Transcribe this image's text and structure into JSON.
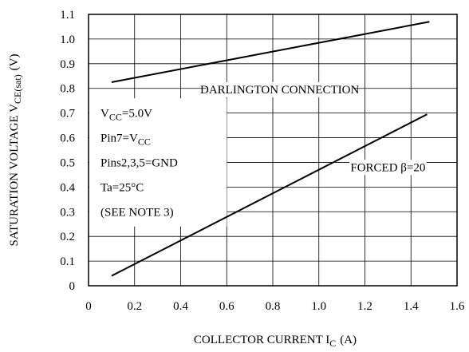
{
  "chart_data": {
    "type": "line",
    "xlabel": {
      "main": "COLLECTOR CURRENT I",
      "sub": "C",
      "unit": "(A)"
    },
    "ylabel": {
      "main": "SATURATION VOLTAGE V",
      "sub": "CE(sat)",
      "unit": "(V)"
    },
    "xlim": [
      0,
      1.6
    ],
    "ylim": [
      0,
      1.1
    ],
    "x_ticks": [
      "0",
      "0.2",
      "0.4",
      "0.6",
      "0.8",
      "1.0",
      "1.2",
      "1.4",
      "1.6"
    ],
    "y_ticks": [
      "0",
      "0.1",
      "0.2",
      "0.3",
      "0.4",
      "0.5",
      "0.6",
      "0.7",
      "0.8",
      "0.9",
      "1.0",
      "1.1"
    ],
    "grid": true,
    "series": [
      {
        "name": "DARLINGTON CONNECTION",
        "x": [
          0.1,
          1.48
        ],
        "y": [
          0.825,
          1.07
        ]
      },
      {
        "name": "FORCED β=20",
        "x": [
          0.1,
          1.47
        ],
        "y": [
          0.04,
          0.695
        ]
      }
    ],
    "conditions": [
      {
        "text": "V",
        "sub": "CC",
        "after": "=5.0V"
      },
      {
        "text": "Pin7=V",
        "sub": "CC",
        "after": ""
      },
      {
        "text": "Pins2,3,5=GND",
        "sub": "",
        "after": ""
      },
      {
        "text": "Ta=25°C",
        "sub": "",
        "after": ""
      },
      {
        "text": "(SEE NOTE 3)",
        "sub": "",
        "after": ""
      }
    ]
  }
}
